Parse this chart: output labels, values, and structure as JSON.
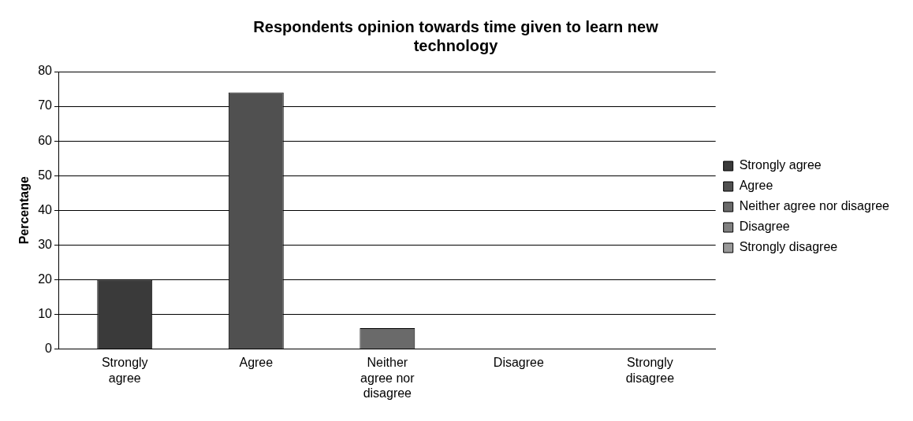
{
  "chart_data": {
    "type": "bar",
    "title": "Respondents opinion towards time given to learn new technology",
    "ylabel": "Percentage",
    "categories": [
      "Strongly agree",
      "Agree",
      "Neither agree nor disagree",
      "Disagree",
      "Strongly disagree"
    ],
    "series": [
      {
        "name": "Strongly agree",
        "color": "#3a3a3a",
        "values": [
          20,
          null,
          null,
          null,
          null
        ]
      },
      {
        "name": "Agree",
        "color": "#505050",
        "values": [
          null,
          74,
          null,
          null,
          null
        ]
      },
      {
        "name": "Neither agree nor disagree",
        "color": "#6a6a6a",
        "values": [
          null,
          null,
          6,
          null,
          null
        ]
      },
      {
        "name": "Disagree",
        "color": "#808080",
        "values": [
          null,
          null,
          null,
          0,
          null
        ]
      },
      {
        "name": "Strongly disagree",
        "color": "#999999",
        "values": [
          null,
          null,
          null,
          null,
          0
        ]
      }
    ],
    "ylim": [
      0,
      80
    ],
    "yticks": [
      0,
      10,
      20,
      30,
      40,
      50,
      60,
      70,
      80
    ],
    "grid": "y",
    "legend": "right"
  }
}
